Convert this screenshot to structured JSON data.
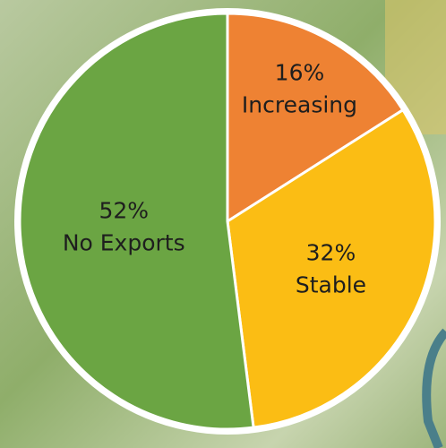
{
  "chart_data": {
    "type": "pie",
    "categories": [
      "Increasing",
      "Stable",
      "No Exports"
    ],
    "values": [
      16,
      32,
      52
    ],
    "value_labels": [
      "16%",
      "32%",
      "52%"
    ],
    "colors": [
      "#ee8233",
      "#fbbd14",
      "#6ba543"
    ]
  }
}
